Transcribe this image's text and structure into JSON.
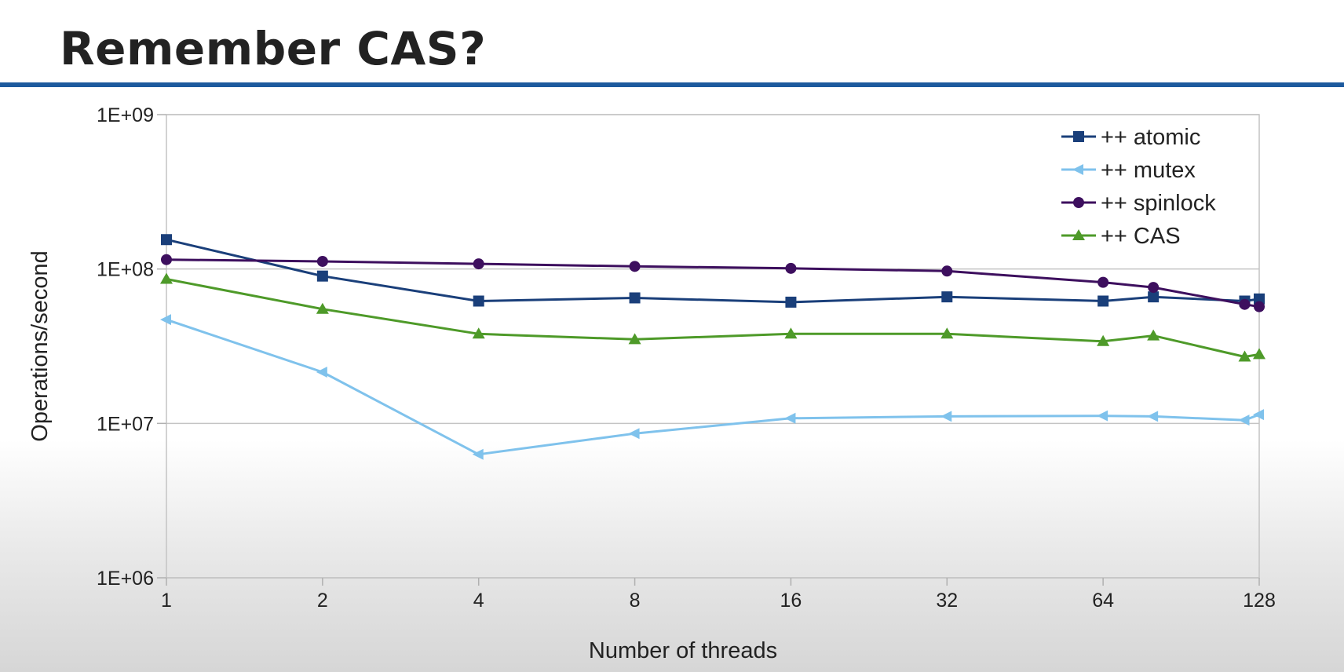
{
  "slide": {
    "title": "Remember CAS?"
  },
  "chart_data": {
    "type": "line",
    "xlabel": "Number of threads",
    "ylabel": "Operations/second",
    "x_scale": "log2",
    "y_scale": "log10",
    "xlim": [
      1,
      128
    ],
    "ylim": [
      1000000,
      1000000000
    ],
    "x_ticks": [
      1,
      2,
      4,
      8,
      16,
      32,
      64,
      128
    ],
    "x_tick_labels": [
      "1",
      "2",
      "4",
      "8",
      "16",
      "32",
      "64",
      "128"
    ],
    "y_ticks": [
      1000000,
      10000000,
      100000000,
      1000000000
    ],
    "y_tick_labels": [
      "1E+06",
      "1E+07",
      "1E+08",
      "1E+09"
    ],
    "grid": "horizontal",
    "legend_position": "top-right",
    "series": [
      {
        "name": "++ atomic",
        "color": "#1a3f7a",
        "marker": "square",
        "points": [
          [
            1,
            155000000
          ],
          [
            2,
            90000000
          ],
          [
            4,
            62000000
          ],
          [
            8,
            65000000
          ],
          [
            16,
            61000000
          ],
          [
            32,
            66000000
          ],
          [
            64,
            62000000
          ],
          [
            80,
            66000000
          ],
          [
            120,
            62000000
          ],
          [
            128,
            64000000
          ]
        ]
      },
      {
        "name": "++ mutex",
        "color": "#7fc2ec",
        "marker": "triangle-left",
        "points": [
          [
            1,
            47000000
          ],
          [
            2,
            21500000
          ],
          [
            4,
            6300000
          ],
          [
            8,
            8600000
          ],
          [
            16,
            10800000
          ],
          [
            32,
            11100000
          ],
          [
            64,
            11200000
          ],
          [
            80,
            11100000
          ],
          [
            120,
            10500000
          ],
          [
            128,
            11400000
          ]
        ]
      },
      {
        "name": "++ spinlock",
        "color": "#3d0f5e",
        "marker": "circle",
        "points": [
          [
            1,
            115000000
          ],
          [
            2,
            112000000
          ],
          [
            4,
            108000000
          ],
          [
            8,
            104000000
          ],
          [
            16,
            101000000
          ],
          [
            32,
            97000000
          ],
          [
            64,
            82000000
          ],
          [
            80,
            76000000
          ],
          [
            120,
            59000000
          ],
          [
            128,
            57000000
          ]
        ]
      },
      {
        "name": "++ CAS",
        "color": "#4e9a29",
        "marker": "triangle-up",
        "points": [
          [
            1,
            86000000
          ],
          [
            2,
            55000000
          ],
          [
            4,
            38000000
          ],
          [
            8,
            35000000
          ],
          [
            16,
            38000000
          ],
          [
            32,
            38000000
          ],
          [
            64,
            34000000
          ],
          [
            80,
            37000000
          ],
          [
            120,
            27000000
          ],
          [
            128,
            28000000
          ]
        ]
      }
    ]
  }
}
